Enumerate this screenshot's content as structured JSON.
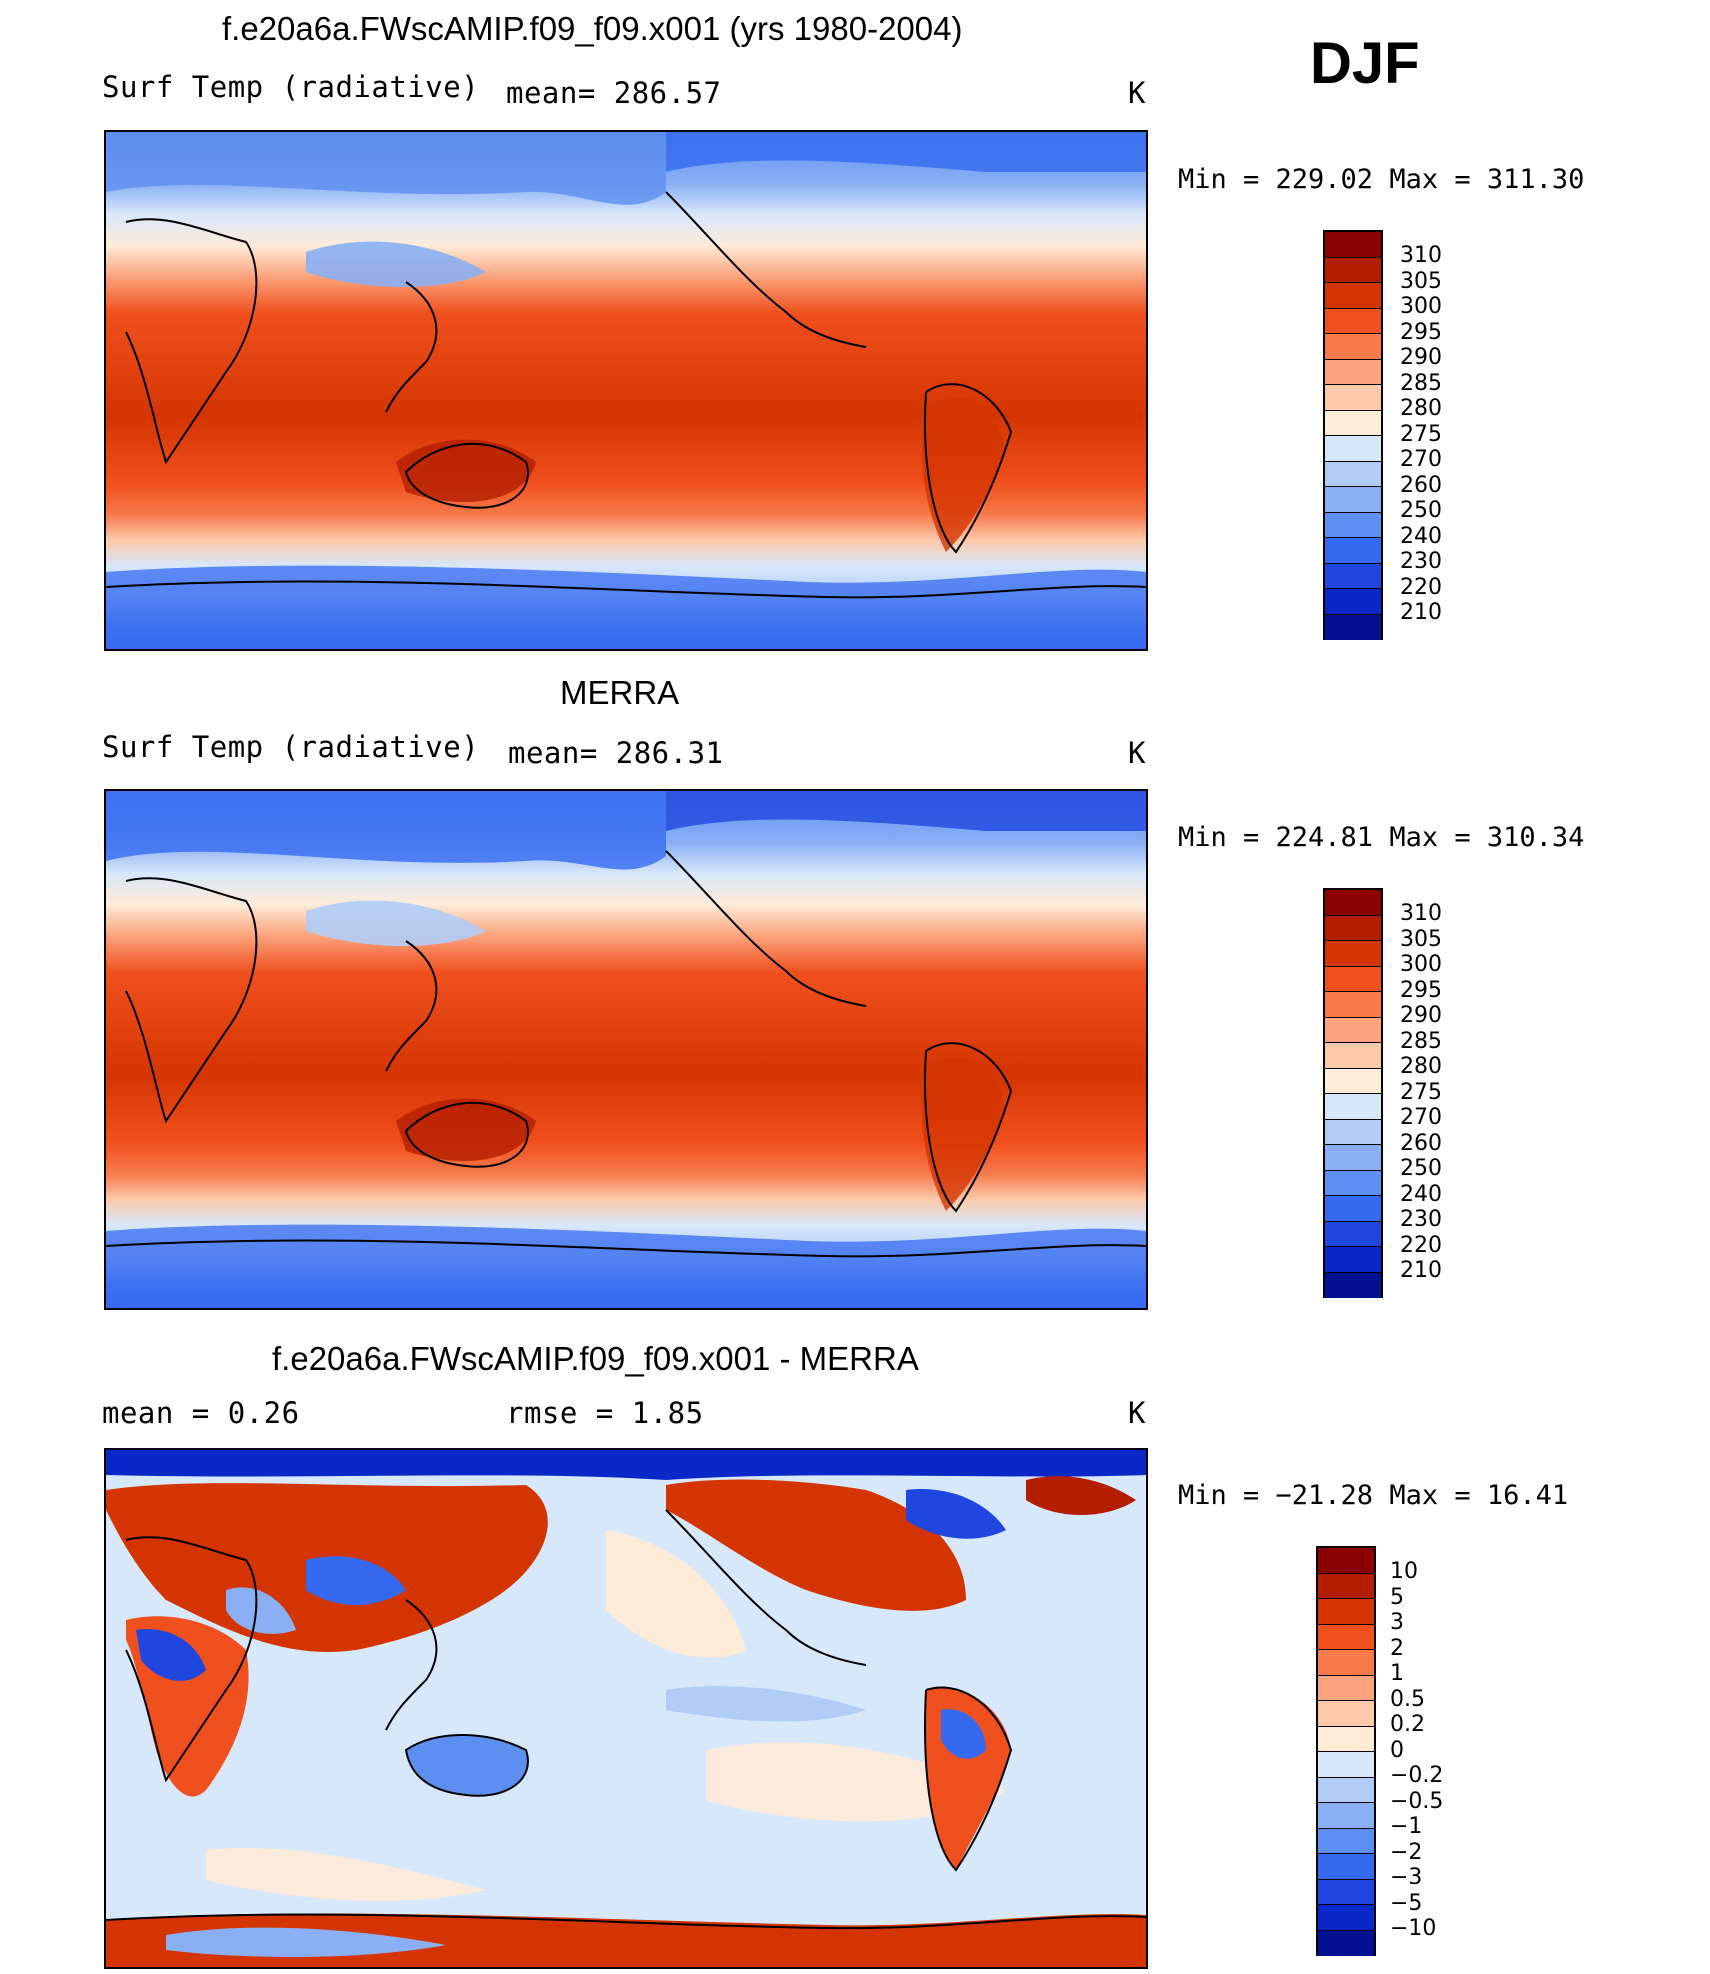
{
  "season": "DJF",
  "unit": "K",
  "panels": [
    {
      "title": "f.e20a6a.FWscAMIP.f09_f09.x001 (yrs 1980-2004)",
      "left_label": "Surf Temp (radiative)",
      "center_label": "mean=  286.57",
      "unit": "K",
      "minmax": "Min  =  229.02  Max  =  311.30",
      "colorbar_labels": [
        "310",
        "305",
        "300",
        "295",
        "290",
        "285",
        "280",
        "275",
        "270",
        "260",
        "250",
        "240",
        "230",
        "220",
        "210"
      ]
    },
    {
      "title": "MERRA",
      "left_label": "Surf Temp (radiative)",
      "center_label": "mean=  286.31",
      "unit": "K",
      "minmax": "Min  =  224.81  Max  =  310.34",
      "colorbar_labels": [
        "310",
        "305",
        "300",
        "295",
        "290",
        "285",
        "280",
        "275",
        "270",
        "260",
        "250",
        "240",
        "230",
        "220",
        "210"
      ]
    },
    {
      "title": "f.e20a6a.FWscAMIP.f09_f09.x001 - MERRA",
      "left_label": "mean  =     0.26",
      "center_label": "rmse  =     1.85",
      "unit": "K",
      "minmax": "Min  = −21.28  Max  =    16.41",
      "colorbar_labels": [
        "10",
        "5",
        "3",
        "2",
        "1",
        "0.5",
        "0.2",
        "0",
        "−0.2",
        "−0.5",
        "−1",
        "−2",
        "−3",
        "−5",
        "−10"
      ]
    }
  ],
  "colors": {
    "abs_scale": [
      "#8b0000",
      "#b31e00",
      "#d43500",
      "#f0501e",
      "#f77a4a",
      "#fba37c",
      "#fdc9ab",
      "#feebd8",
      "#d8e8fb",
      "#b0cdf8",
      "#8aaff4",
      "#5d8ff0",
      "#356af0",
      "#1f47e0",
      "#0a28c8",
      "#001090"
    ],
    "diff_scale": [
      "#8b0000",
      "#b31e00",
      "#d43500",
      "#f0501e",
      "#f77a4a",
      "#fba37c",
      "#fdc9ab",
      "#feebd8",
      "#d8e8fb",
      "#b0cdf8",
      "#8aaff4",
      "#5d8ff0",
      "#356af0",
      "#1f47e0",
      "#0a28c8",
      "#001090"
    ]
  }
}
